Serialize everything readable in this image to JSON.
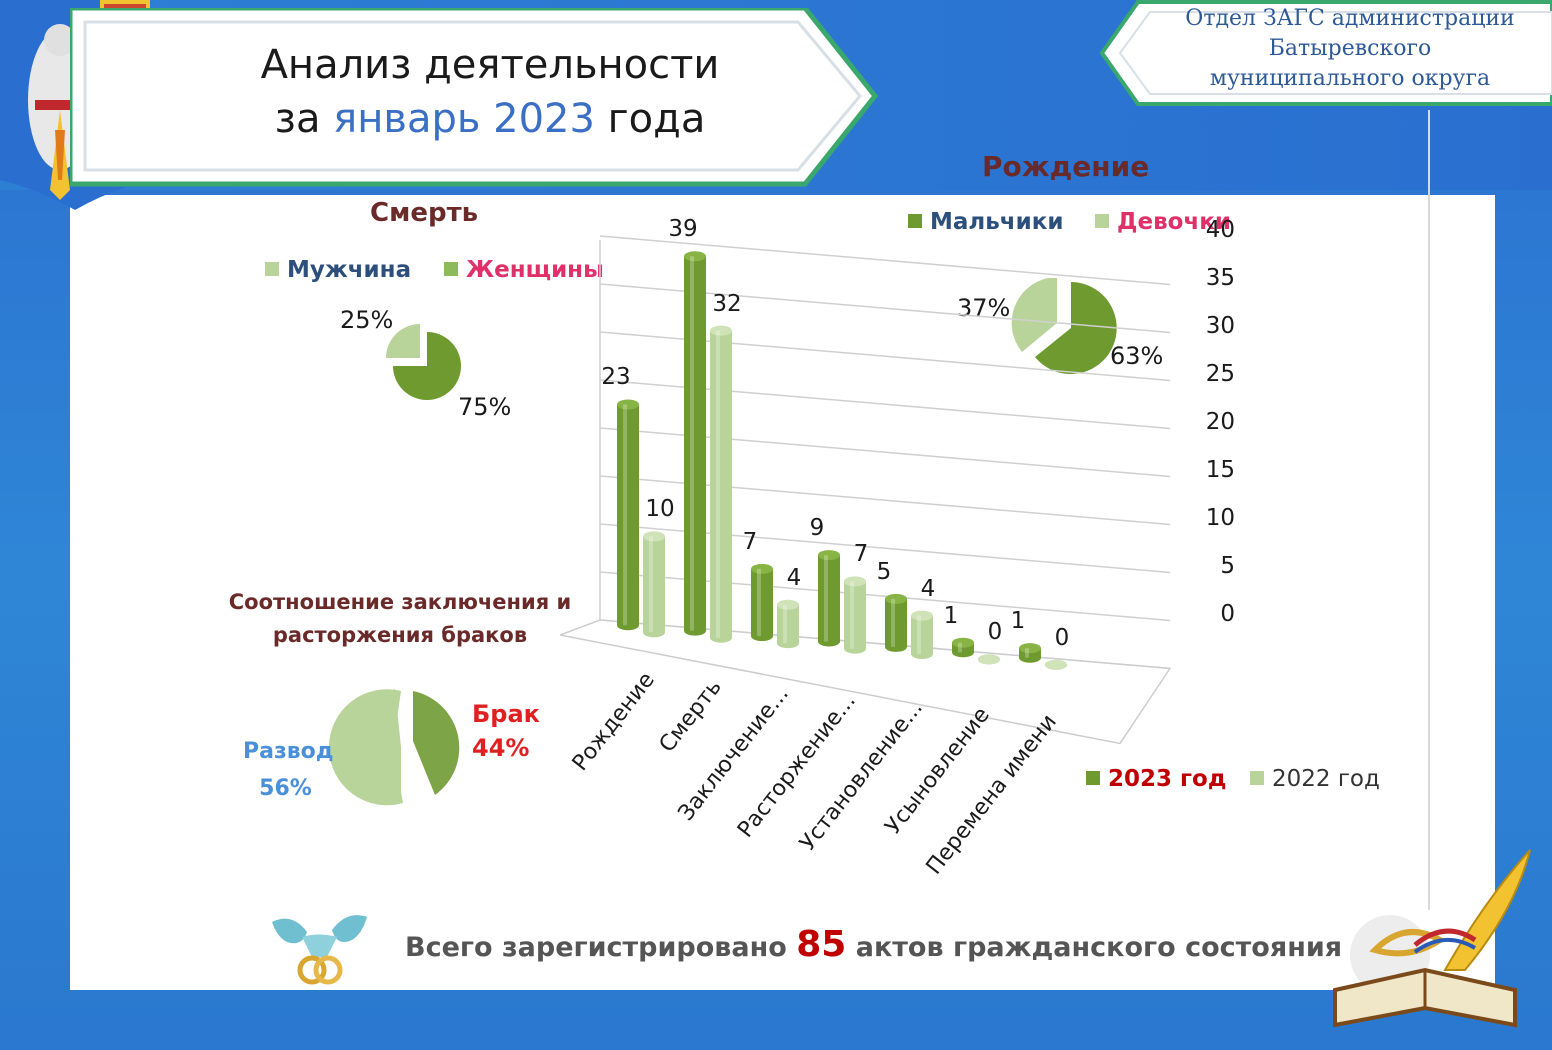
{
  "header": {
    "title_line1": "Анализ деятельности",
    "title_prefix": "за ",
    "title_accent": "январь 2023",
    "title_suffix": " года",
    "dept_line1": "Отдел ЗАГС администрации",
    "dept_line2": "Батыревского",
    "dept_line3": "муниципального округа"
  },
  "colors": {
    "series_2023": "#6e9a30",
    "series_2022": "#b9d49a",
    "accent": "#3a6fc4",
    "highlight": "#c00000"
  },
  "death_pie": {
    "title": "Смерть",
    "legend": [
      {
        "label": "Мужчина",
        "color": "#2d4f7c"
      },
      {
        "label": "Женщины",
        "color": "#e0306a"
      }
    ],
    "slices": [
      {
        "label": "75%",
        "value": 75
      },
      {
        "label": "25%",
        "value": 25
      }
    ]
  },
  "birth_pie": {
    "title": "Рождение",
    "legend": [
      {
        "label": "Мальчики",
        "color": "#2d4f7c"
      },
      {
        "label": "Девочки",
        "color": "#e0306a"
      }
    ],
    "slices": [
      {
        "label": "63%",
        "value": 63
      },
      {
        "label": "37%",
        "value": 37
      }
    ]
  },
  "marriage_pie": {
    "title_line1": "Соотношение заключения и",
    "title_line2": "расторжения браков",
    "slices": [
      {
        "label": "Брак",
        "pct": "44%",
        "value": 44
      },
      {
        "label": "Развод",
        "pct": "56%",
        "value": 56
      }
    ]
  },
  "chart_data": {
    "type": "bar",
    "categories": [
      "Рождение",
      "Смерть",
      "Заключение...",
      "Расторжение...",
      "Установление...",
      "Усыновление",
      "Перемена имени"
    ],
    "series": [
      {
        "name": "2023 год",
        "values": [
          23,
          39,
          7,
          9,
          5,
          1,
          1
        ]
      },
      {
        "name": "2022 год",
        "values": [
          10,
          32,
          4,
          7,
          4,
          0,
          0
        ]
      }
    ],
    "ylim": [
      0,
      40
    ],
    "yticks": [
      "0",
      "5",
      "10",
      "15",
      "20",
      "25",
      "30",
      "35",
      "40"
    ],
    "grid": true,
    "legend_position": "bottom-right"
  },
  "footer": {
    "text_before": "Всего зарегистрировано ",
    "total": "85",
    "text_after": " актов гражданского состояния"
  }
}
